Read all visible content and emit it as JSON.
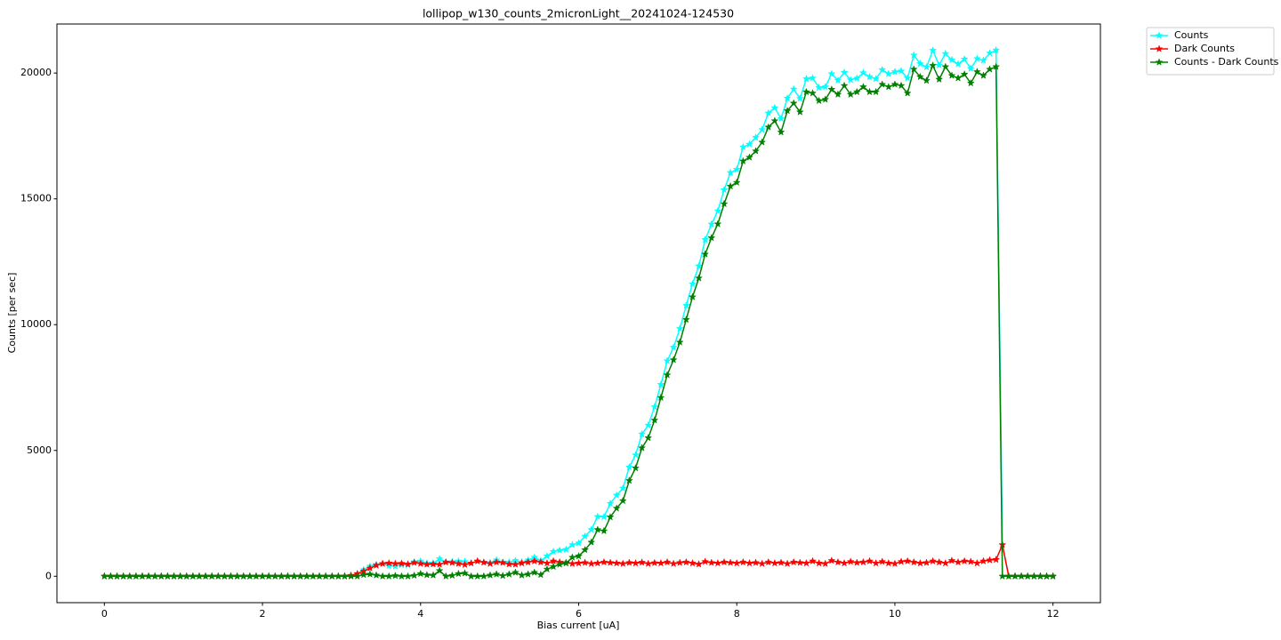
{
  "chart_data": {
    "type": "line",
    "title": "lollipop_w130_counts_2micronLight__20241024-124530",
    "x_label": "Bias current [uA]",
    "y_label": "Counts [per sec]",
    "xlim": [
      -0.6,
      12.6
    ],
    "ylim": [
      -1050,
      21950
    ],
    "xticks": [
      0,
      2,
      4,
      6,
      8,
      10,
      12
    ],
    "yticks": [
      0,
      5000,
      10000,
      15000,
      20000
    ],
    "grid": false,
    "legend": "outside upper right",
    "marker": "star",
    "x": [
      0,
      0.08,
      0.16,
      0.24,
      0.32,
      0.4,
      0.48,
      0.56,
      0.64,
      0.72,
      0.8,
      0.88,
      0.96,
      1.04,
      1.12,
      1.2,
      1.28,
      1.36,
      1.44,
      1.52,
      1.6,
      1.68,
      1.76,
      1.84,
      1.92,
      2,
      2.08,
      2.16,
      2.24,
      2.32,
      2.4,
      2.48,
      2.56,
      2.64,
      2.72,
      2.8,
      2.88,
      2.96,
      3.04,
      3.12,
      3.2,
      3.28,
      3.36,
      3.44,
      3.52,
      3.6,
      3.68,
      3.76,
      3.84,
      3.92,
      4,
      4.08,
      4.16,
      4.24,
      4.32,
      4.4,
      4.48,
      4.56,
      4.64,
      4.72,
      4.8,
      4.88,
      4.96,
      5.04,
      5.12,
      5.2,
      5.28,
      5.36,
      5.44,
      5.52,
      5.6,
      5.68,
      5.76,
      5.84,
      5.92,
      6,
      6.08,
      6.16,
      6.24,
      6.32,
      6.4,
      6.48,
      6.56,
      6.64,
      6.72,
      6.8,
      6.88,
      6.96,
      7.04,
      7.12,
      7.2,
      7.28,
      7.36,
      7.44,
      7.52,
      7.6,
      7.68,
      7.76,
      7.84,
      7.92,
      8,
      8.08,
      8.16,
      8.24,
      8.32,
      8.4,
      8.48,
      8.56,
      8.64,
      8.72,
      8.8,
      8.88,
      8.96,
      9.04,
      9.12,
      9.2,
      9.28,
      9.36,
      9.44,
      9.52,
      9.6,
      9.68,
      9.76,
      9.84,
      9.92,
      10,
      10.08,
      10.16,
      10.24,
      10.32,
      10.4,
      10.48,
      10.56,
      10.64,
      10.72,
      10.8,
      10.88,
      10.96,
      11.04,
      11.12,
      11.2,
      11.28,
      11.36,
      11.44,
      11.52,
      11.6,
      11.68,
      11.76,
      11.84,
      11.92,
      12
    ],
    "series": [
      {
        "name": "Counts",
        "color": "#00ffff",
        "values": [
          0,
          0,
          0,
          0,
          0,
          0,
          0,
          0,
          0,
          0,
          0,
          0,
          0,
          0,
          0,
          0,
          0,
          0,
          0,
          0,
          0,
          0,
          0,
          0,
          0,
          0,
          0,
          0,
          0,
          0,
          0,
          0,
          0,
          0,
          0,
          0,
          0,
          0,
          0,
          30,
          100,
          260,
          400,
          470,
          500,
          420,
          400,
          450,
          450,
          570,
          600,
          520,
          520,
          690,
          560,
          570,
          600,
          580,
          520,
          600,
          550,
          540,
          640,
          560,
          560,
          620,
          560,
          640,
          750,
          620,
          800,
          980,
          1030,
          1060,
          1250,
          1320,
          1590,
          1850,
          2370,
          2360,
          2890,
          3220,
          3500,
          4340,
          4820,
          5650,
          6000,
          6730,
          7620,
          8560,
          9100,
          9840,
          10760,
          11620,
          12330,
          13380,
          13990,
          14520,
          15360,
          16040,
          16170,
          17060,
          17170,
          17440,
          17750,
          18410,
          18620,
          18190,
          19000,
          19360,
          18990,
          19770,
          19800,
          19420,
          19450,
          19970,
          19710,
          20020,
          19730,
          19790,
          20010,
          19850,
          19770,
          20130,
          19970,
          20050,
          20080,
          19800,
          20710,
          20370,
          20240,
          20900,
          20310,
          20770,
          20520,
          20360,
          20550,
          20180,
          20570,
          20500,
          20790,
          20910,
          1250,
          0,
          0,
          0,
          0,
          0,
          0,
          0,
          0
        ]
      },
      {
        "name": "Dark Counts",
        "color": "#ff0000",
        "values": [
          0,
          0,
          0,
          0,
          0,
          0,
          0,
          0,
          0,
          0,
          0,
          0,
          0,
          0,
          0,
          0,
          0,
          0,
          0,
          0,
          0,
          0,
          0,
          0,
          0,
          0,
          0,
          0,
          0,
          0,
          0,
          0,
          0,
          0,
          0,
          0,
          0,
          0,
          0,
          30,
          100,
          200,
          320,
          430,
          500,
          520,
          500,
          510,
          480,
          540,
          500,
          470,
          480,
          470,
          560,
          540,
          500,
          460,
          520,
          600,
          550,
          500,
          560,
          540,
          480,
          470,
          520,
          560,
          600,
          560,
          520,
          600,
          560,
          540,
          500,
          520,
          540,
          500,
          520,
          560,
          540,
          520,
          500,
          540,
          520,
          550,
          500,
          530,
          520,
          560,
          500,
          540,
          560,
          520,
          480,
          580,
          540,
          520,
          560,
          540,
          520,
          560,
          520,
          540,
          500,
          560,
          520,
          540,
          500,
          560,
          540,
          520,
          600,
          520,
          500,
          620,
          560,
          520,
          580,
          540,
          560,
          600,
          520,
          580,
          520,
          500,
          580,
          600,
          560,
          520,
          540,
          600,
          560,
          520,
          620,
          560,
          600,
          580,
          520,
          600,
          640,
          660,
          1250,
          0,
          0,
          0,
          0,
          0,
          0,
          0,
          0
        ]
      },
      {
        "name": "Counts - Dark Counts",
        "color": "#008000",
        "values": [
          0,
          0,
          0,
          0,
          0,
          0,
          0,
          0,
          0,
          0,
          0,
          0,
          0,
          0,
          0,
          0,
          0,
          0,
          0,
          0,
          0,
          0,
          0,
          0,
          0,
          0,
          0,
          0,
          0,
          0,
          0,
          0,
          0,
          0,
          0,
          0,
          0,
          0,
          0,
          0,
          0,
          60,
          80,
          40,
          0,
          0,
          20,
          0,
          0,
          30,
          100,
          50,
          40,
          220,
          0,
          30,
          100,
          120,
          0,
          0,
          0,
          40,
          80,
          20,
          80,
          150,
          40,
          80,
          150,
          60,
          280,
          380,
          470,
          520,
          750,
          800,
          1050,
          1350,
          1850,
          1800,
          2350,
          2700,
          3000,
          3800,
          4300,
          5100,
          5500,
          6200,
          7100,
          8000,
          8600,
          9300,
          10200,
          11100,
          11850,
          12800,
          13450,
          14000,
          14800,
          15500,
          15650,
          16500,
          16650,
          16900,
          17250,
          17850,
          18100,
          17650,
          18500,
          18800,
          18450,
          19250,
          19200,
          18900,
          18950,
          19350,
          19150,
          19500,
          19150,
          19250,
          19450,
          19250,
          19250,
          19550,
          19450,
          19550,
          19500,
          19200,
          20150,
          19850,
          19700,
          20300,
          19750,
          20250,
          19900,
          19800,
          19950,
          19600,
          20050,
          19900,
          20150,
          20250,
          0,
          0,
          0,
          0,
          0,
          0,
          0,
          0,
          0
        ]
      }
    ]
  }
}
